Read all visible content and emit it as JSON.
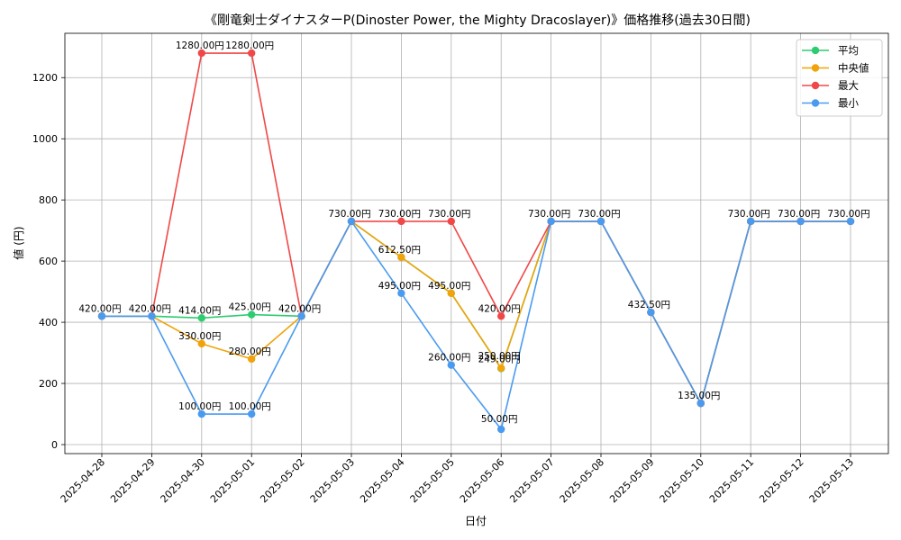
{
  "chart_data": {
    "type": "line",
    "title": "《剛竜剣士ダイナスターP(Dinoster Power, the Mighty Dracoslayer)》価格推移(過去30日間)",
    "xlabel": "日付",
    "ylabel": "値 (円)",
    "ylim": [
      -10,
      1340
    ],
    "yticks": [
      0,
      200,
      400,
      600,
      800,
      1000,
      1200
    ],
    "grid": true,
    "legend_position": "top-right",
    "categories": [
      "2025-04-28",
      "2025-04-29",
      "2025-04-30",
      "2025-05-01",
      "2025-05-02",
      "2025-05-03",
      "2025-05-04",
      "2025-05-05",
      "2025-05-06",
      "2025-05-07",
      "2025-05-08",
      "2025-05-09",
      "2025-05-10",
      "2025-05-11",
      "2025-05-12",
      "2025-05-13"
    ],
    "series": [
      {
        "name": "平均",
        "color": "#2ecc71",
        "values": [
          420,
          420,
          414,
          425,
          420,
          730,
          612.5,
          495,
          249,
          730,
          730,
          432.5,
          135,
          730,
          730,
          730
        ]
      },
      {
        "name": "中央値",
        "color": "#f0a30a",
        "values": [
          420,
          420,
          330,
          280,
          420,
          730,
          612.5,
          495,
          250,
          730,
          730,
          432.5,
          135,
          730,
          730,
          730
        ]
      },
      {
        "name": "最大",
        "color": "#f04848",
        "values": [
          420,
          420,
          1280,
          1280,
          420,
          730,
          730,
          730,
          420,
          730,
          730,
          432.5,
          135,
          730,
          730,
          730
        ]
      },
      {
        "name": "最小",
        "color": "#4a9bf0",
        "values": [
          420,
          420,
          100,
          100,
          420,
          730,
          495,
          260,
          50,
          730,
          730,
          432.5,
          135,
          730,
          730,
          730
        ]
      }
    ],
    "data_labels": [
      "420.00円",
      "420.00円",
      "414.00円",
      "425.00円",
      "420.00円",
      "730.00円",
      "612.50円",
      "495.00円",
      "249.00円",
      "730.00円",
      "730.00円",
      "432.50円",
      "135.00円",
      "730.00円",
      "730.00円",
      "730.00円",
      "330.00円",
      "280.00円",
      "250.00円",
      "1280.00円",
      "1280.00円",
      "730.00円",
      "730.00円",
      "420.00円",
      "100.00円",
      "100.00円",
      "495.00円",
      "260.00円",
      "50.00円"
    ]
  }
}
